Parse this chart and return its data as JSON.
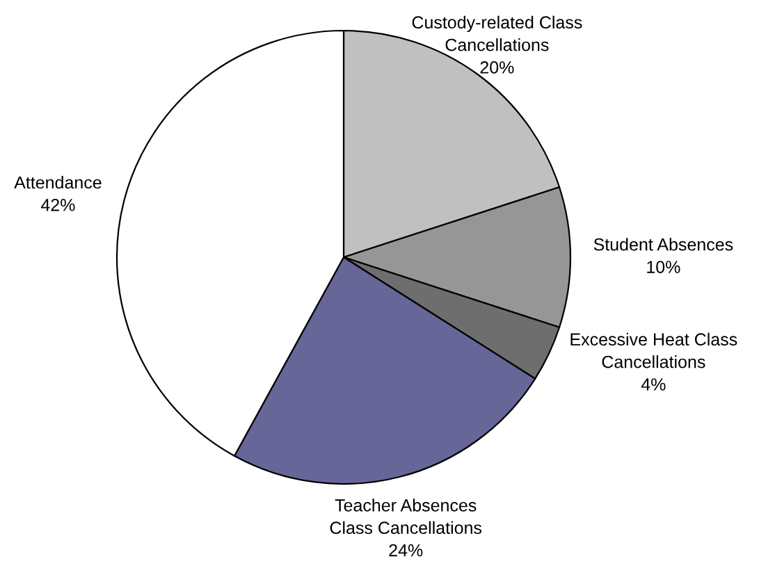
{
  "chart_data": {
    "type": "pie",
    "categories": [
      "Custody-related Class\nCancellations",
      "Student Absences",
      "Excessive Heat Class\nCancellations",
      "Teacher Absences\nClass Cancellations",
      "Attendance"
    ],
    "values": [
      20,
      10,
      4,
      24,
      42
    ],
    "value_labels": [
      "20%",
      "10%",
      "4%",
      "24%",
      "42%"
    ],
    "colors": [
      "#c0c0c0",
      "#969696",
      "#6e6e6e",
      "#666699",
      "#ffffff"
    ],
    "legend": false
  }
}
